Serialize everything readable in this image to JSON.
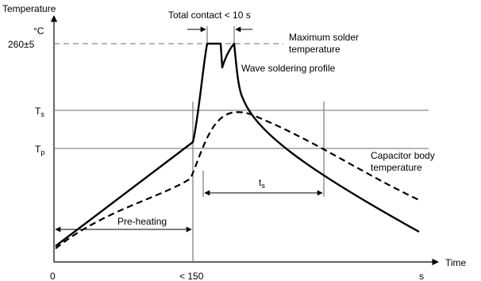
{
  "y_axis": {
    "title": "Temperature",
    "unit": "°C"
  },
  "x_axis": {
    "title": "Time",
    "unit": "s",
    "tick_start": "0",
    "tick_mid": "< 150"
  },
  "levels": {
    "max": "260±5",
    "ts_main": "T",
    "ts_sub": "s",
    "tp_main": "T",
    "tp_sub": "p"
  },
  "labels": {
    "total_contact": "Total contact < 10 s",
    "max_solder_line1": "Maximum solder",
    "max_solder_line2": "temperature",
    "wave_profile": "Wave soldering profile",
    "cap_body_line1": "Capacitor body",
    "cap_body_line2": "temperature",
    "ts_main": "t",
    "ts_sub": "s",
    "preheating": "Pre-heating"
  }
}
